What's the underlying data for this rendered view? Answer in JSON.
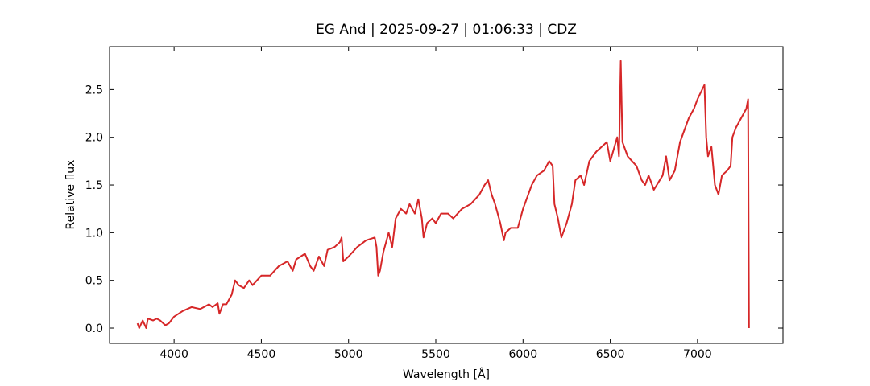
{
  "chart_data": {
    "type": "line",
    "title": "EG And | 2025-09-27 | 01:06:33 | CDZ",
    "x_label": "Wavelength [Å]",
    "y_label": "Relative flux",
    "xlim": [
      3630,
      7490
    ],
    "ylim": [
      -0.16,
      2.95
    ],
    "xticks": [
      4000,
      4500,
      5000,
      5500,
      6000,
      6500,
      7000
    ],
    "yticks": [
      {
        "value": 0,
        "label": "0.0"
      },
      0.5,
      {
        "value": 1,
        "label": "1.0"
      },
      1.5,
      {
        "value": 2,
        "label": "2.0"
      },
      2.5
    ],
    "grid": false,
    "series": [
      {
        "name": "EG And",
        "color": "#d62728",
        "x": [
          3790,
          3800,
          3820,
          3840,
          3850,
          3880,
          3900,
          3920,
          3950,
          3970,
          4000,
          4050,
          4100,
          4150,
          4200,
          4220,
          4250,
          4260,
          4280,
          4300,
          4330,
          4350,
          4370,
          4400,
          4430,
          4450,
          4500,
          4550,
          4600,
          4650,
          4680,
          4700,
          4750,
          4780,
          4800,
          4830,
          4860,
          4880,
          4920,
          4950,
          4960,
          4970,
          5000,
          5050,
          5100,
          5150,
          5160,
          5170,
          5180,
          5200,
          5230,
          5250,
          5270,
          5300,
          5330,
          5350,
          5380,
          5400,
          5420,
          5430,
          5450,
          5480,
          5500,
          5530,
          5570,
          5600,
          5650,
          5700,
          5750,
          5780,
          5800,
          5820,
          5840,
          5870,
          5890,
          5900,
          5930,
          5970,
          6000,
          6050,
          6080,
          6120,
          6150,
          6170,
          6180,
          6200,
          6220,
          6250,
          6280,
          6300,
          6330,
          6350,
          6380,
          6420,
          6450,
          6480,
          6500,
          6540,
          6550,
          6560,
          6570,
          6600,
          6650,
          6680,
          6700,
          6720,
          6750,
          6800,
          6820,
          6840,
          6870,
          6900,
          6950,
          6980,
          7000,
          7040,
          7050,
          7060,
          7080,
          7100,
          7120,
          7140,
          7170,
          7190,
          7200,
          7220,
          7250,
          7280,
          7290,
          7295
        ],
        "values": [
          0.05,
          0.0,
          0.08,
          0.0,
          0.1,
          0.08,
          0.1,
          0.08,
          0.03,
          0.05,
          0.12,
          0.18,
          0.22,
          0.2,
          0.25,
          0.22,
          0.26,
          0.15,
          0.25,
          0.25,
          0.35,
          0.5,
          0.45,
          0.42,
          0.5,
          0.45,
          0.55,
          0.55,
          0.65,
          0.7,
          0.6,
          0.72,
          0.78,
          0.65,
          0.6,
          0.75,
          0.65,
          0.82,
          0.85,
          0.9,
          0.95,
          0.7,
          0.75,
          0.85,
          0.92,
          0.95,
          0.85,
          0.55,
          0.6,
          0.8,
          1.0,
          0.85,
          1.15,
          1.25,
          1.2,
          1.3,
          1.2,
          1.35,
          1.15,
          0.95,
          1.1,
          1.15,
          1.1,
          1.2,
          1.2,
          1.15,
          1.25,
          1.3,
          1.4,
          1.5,
          1.55,
          1.4,
          1.3,
          1.1,
          0.92,
          1.0,
          1.05,
          1.05,
          1.25,
          1.5,
          1.6,
          1.65,
          1.75,
          1.7,
          1.3,
          1.15,
          0.95,
          1.1,
          1.3,
          1.55,
          1.6,
          1.5,
          1.75,
          1.85,
          1.9,
          1.95,
          1.75,
          2.0,
          1.8,
          2.8,
          1.95,
          1.8,
          1.7,
          1.55,
          1.5,
          1.6,
          1.45,
          1.6,
          1.8,
          1.55,
          1.65,
          1.95,
          2.2,
          2.3,
          2.4,
          2.55,
          2.0,
          1.8,
          1.9,
          1.5,
          1.4,
          1.6,
          1.65,
          1.7,
          2.0,
          2.1,
          2.2,
          2.3,
          2.4,
          0.0
        ]
      }
    ]
  }
}
